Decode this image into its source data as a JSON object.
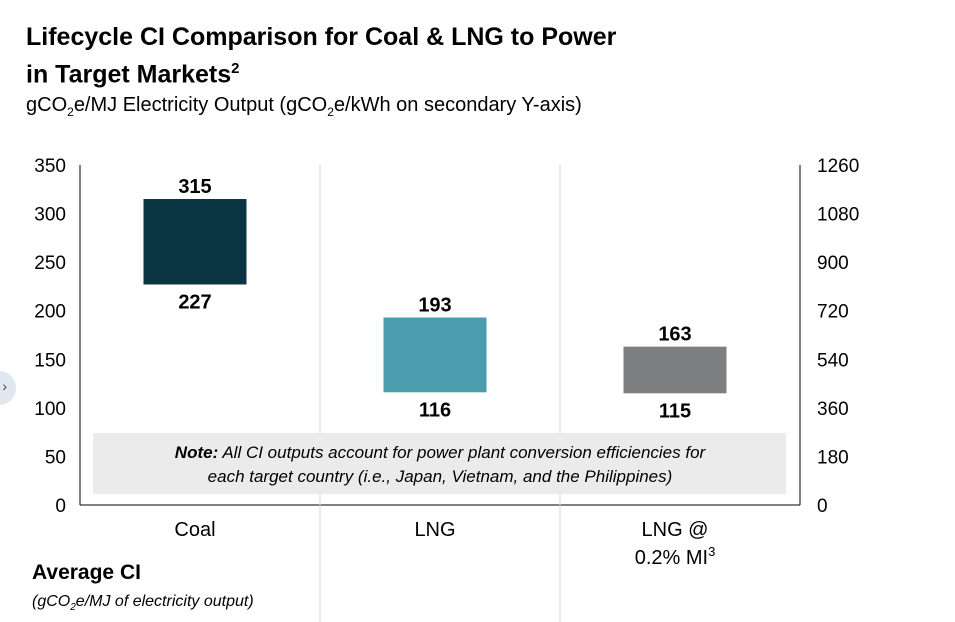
{
  "title": {
    "line1": "Lifecycle CI Comparison for Coal & LNG to Power",
    "line2": "in Target Markets",
    "sup": "2"
  },
  "subtitle": {
    "part1": "gCO",
    "sub1": "2",
    "part2": "e/MJ Electricity Output (gCO",
    "sub2": "2",
    "part3": "e/kWh on secondary Y-axis)"
  },
  "note": {
    "label": "Note:",
    "line1": " All CI outputs account for power plant conversion efficiencies for",
    "line2": "each target country (i.e., Japan, Vietnam, and the Philippines)"
  },
  "footer": {
    "avg_label": "Average CI",
    "unit_part1": "(gCO",
    "unit_sub": "2",
    "unit_part2": "e/MJ of electricity output)"
  },
  "chart_data": {
    "type": "floating-bar",
    "categories": [
      "Coal",
      "LNG",
      "LNG @\n0.2% MI"
    ],
    "category_sup": [
      "",
      "",
      "3"
    ],
    "series": [
      {
        "low": 227,
        "high": 315
      },
      {
        "low": 116,
        "high": 193
      },
      {
        "low": 115,
        "high": 163
      }
    ],
    "colors": [
      "#0b3542",
      "#4b9cad",
      "#7e7f81"
    ],
    "ylim": [
      0,
      350
    ],
    "yticks": [
      0,
      50,
      100,
      150,
      200,
      250,
      300,
      350
    ],
    "y2ticks": [
      0,
      180,
      360,
      540,
      720,
      900,
      1080,
      1260
    ],
    "grid": "vertical separators"
  }
}
